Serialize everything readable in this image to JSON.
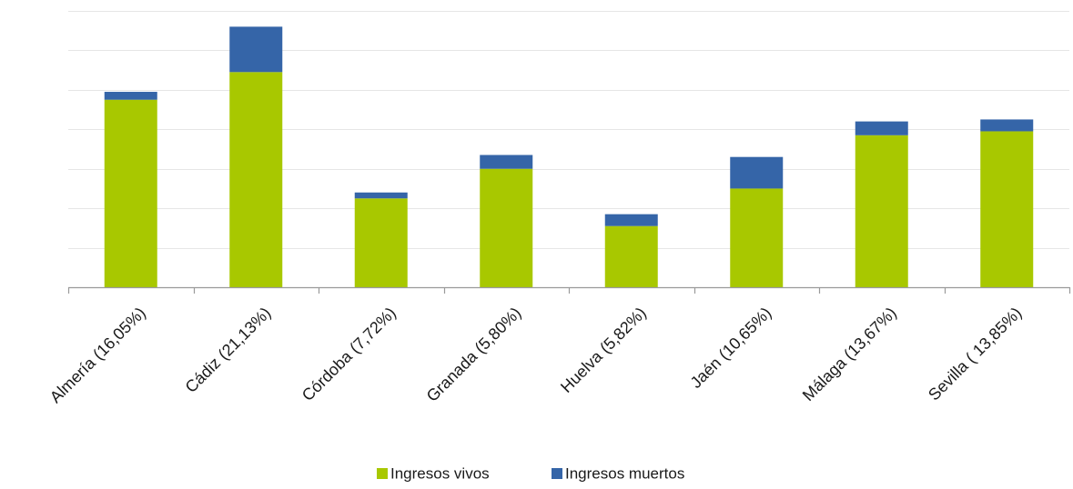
{
  "chart_data": {
    "type": "bar",
    "stacked": true,
    "categories": [
      "Almería (16,05%)",
      "Cádiz (21,13%)",
      "Córdoba (7,72%)",
      "Granada (5,80%)",
      "Huelva (5,82%)",
      "Jaén (10,65%)",
      "Málaga (13,67%)",
      "Sevilla ( 13,85%)"
    ],
    "series": [
      {
        "name": "Ingresos vivos",
        "color": "#a8c800",
        "values": [
          47.5,
          54.5,
          22.5,
          30.0,
          15.5,
          25.0,
          38.5,
          39.5
        ]
      },
      {
        "name": "Ingresos muertos",
        "color": "#3565a8",
        "values": [
          2.0,
          11.5,
          1.5,
          3.5,
          3.0,
          8.0,
          3.5,
          3.0
        ]
      }
    ],
    "ylim": [
      0,
      70
    ],
    "y_grid_step": 10,
    "ytick_labels_visible": false,
    "grid": true,
    "legend_position": "bottom-center"
  }
}
